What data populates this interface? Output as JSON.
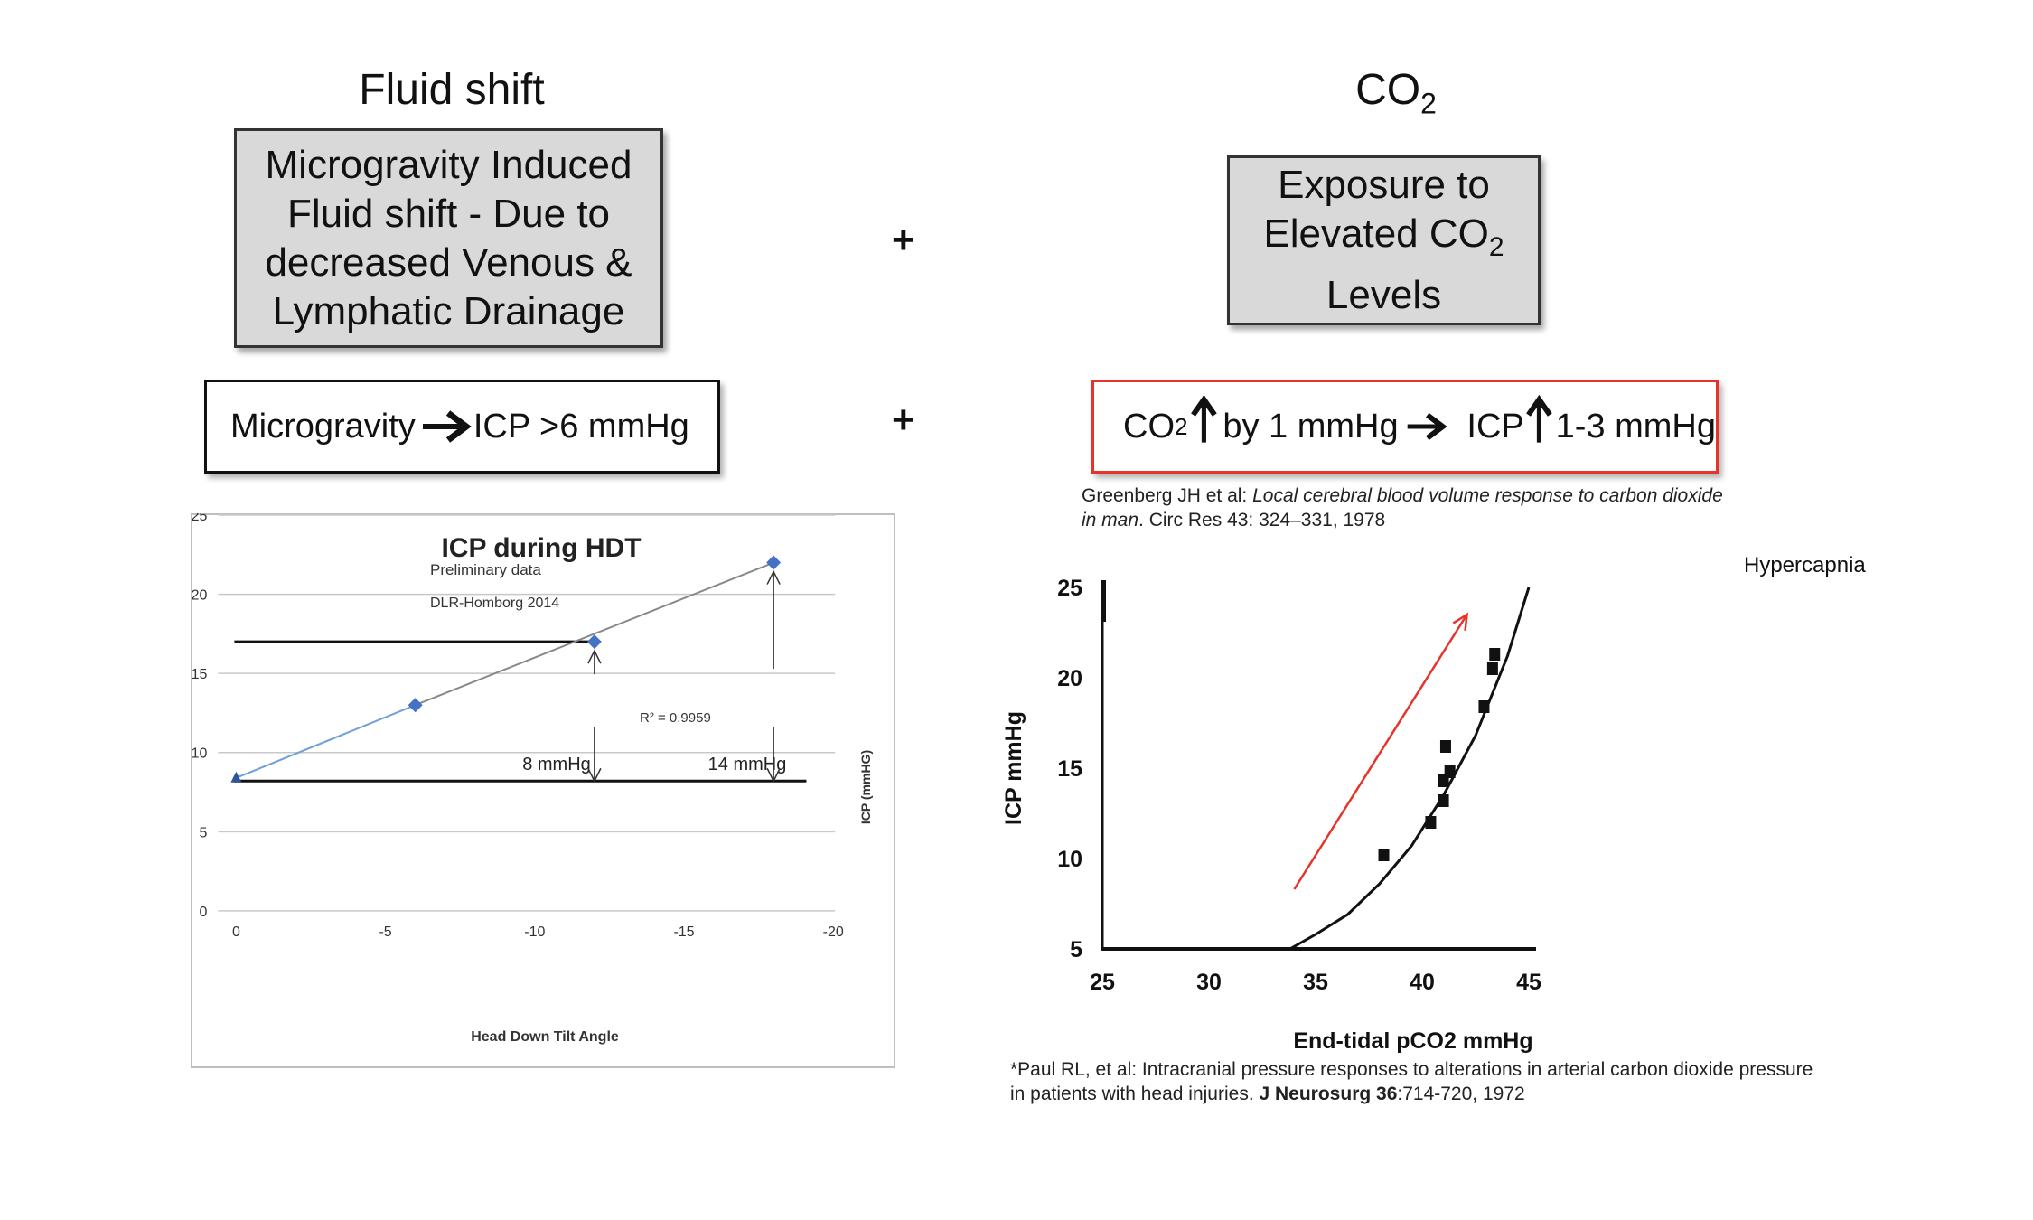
{
  "left": {
    "heading": "Fluid shift",
    "box_lines": [
      "Microgravity Induced",
      "Fluid shift - Due to",
      "decreased Venous &",
      "Lymphatic Drainage"
    ],
    "formula_left": "Microgravity",
    "formula_right": "ICP >6 mmHg"
  },
  "right": {
    "heading_main": "CO",
    "heading_sub": "2",
    "box_line1": "Exposure to",
    "box_line2_main": "Elevated CO",
    "box_line2_sub": "2",
    "box_line3": "Levels",
    "formula_co": "CO",
    "formula_sub": "2",
    "formula_mid": "by 1 mmHg",
    "formula_icp": "ICP",
    "formula_end": "1-3 mmHg",
    "ref1_authors": "Greenberg JH et al:",
    "ref1_title_a": "Local cerebral blood volume response to carbon dioxide",
    "ref1_title_b": "in man",
    "ref1_journal": ". Circ Res 43:  324–331, 1978",
    "ref2_line1": "*Paul RL, et al: Intracranial pressure responses to alterations in arterial carbon dioxide pressure",
    "ref2_line2_a": "in patients with head injuries. ",
    "ref2_journal": "J Neurosurg 36",
    "ref2_line2_b": ":714-720, 1972"
  },
  "plus_signs": [
    "+",
    "+"
  ],
  "chart_data": [
    {
      "type": "scatter",
      "title": "ICP during HDT",
      "subtitle": "Preliminary data",
      "source_note": "DLR-Homborg 2014",
      "xlabel": "Head Down Tilt Angle",
      "ylabel": "ICP (mmHG)",
      "xlim": [
        0,
        -20
      ],
      "ylim": [
        0,
        25
      ],
      "xticks": [
        0,
        -5,
        -10,
        -15,
        -20
      ],
      "xtick_labels": [
        "0",
        "-5",
        "-10",
        "-15",
        "-20"
      ],
      "yticks": [
        0,
        5,
        10,
        15,
        20,
        25
      ],
      "ytick_labels": [
        "0",
        "5",
        "10",
        "15",
        "20",
        "25"
      ],
      "grid": true,
      "points": [
        {
          "x": 0,
          "y": 8.4
        },
        {
          "x": -6,
          "y": 13
        },
        {
          "x": -12,
          "y": 17
        },
        {
          "x": -18,
          "y": 22
        }
      ],
      "trendline_r2_label": "R² = 0.9959",
      "reference_lines": [
        17,
        8.2
      ],
      "annotations": [
        {
          "text": "8 mmHg",
          "x": -12
        },
        {
          "text": "14 mmHg",
          "x": -18
        }
      ],
      "colors": {
        "points": "#4472c4",
        "trend": "#888888",
        "grid": "#c8c8c8"
      }
    },
    {
      "type": "line",
      "xlabel": "End-tidal pCO2 mmHg",
      "ylabel": "ICP mmHg",
      "xlim": [
        25,
        45
      ],
      "ylim": [
        5,
        25
      ],
      "xticks": [
        25,
        30,
        35,
        40,
        45
      ],
      "xtick_labels": [
        "25",
        "30",
        "35",
        "40",
        "45"
      ],
      "yticks": [
        5,
        10,
        15,
        20,
        25
      ],
      "ytick_labels": [
        "5",
        "10",
        "15",
        "20",
        "25"
      ],
      "series_label": "Hypercapnia",
      "curve": [
        {
          "x": 25,
          "y": 5
        },
        {
          "x": 33.8,
          "y": 5
        },
        {
          "x": 35,
          "y": 5.8
        },
        {
          "x": 36.5,
          "y": 6.9
        },
        {
          "x": 38,
          "y": 8.6
        },
        {
          "x": 39.5,
          "y": 10.7
        },
        {
          "x": 41,
          "y": 13.5
        },
        {
          "x": 42.5,
          "y": 16.8
        },
        {
          "x": 44,
          "y": 21.2
        },
        {
          "x": 45,
          "y": 25
        }
      ],
      "points": [
        {
          "x": 38.2,
          "y": 10.2
        },
        {
          "x": 40.4,
          "y": 12
        },
        {
          "x": 41,
          "y": 13.2
        },
        {
          "x": 41,
          "y": 14.3
        },
        {
          "x": 41.1,
          "y": 16.2
        },
        {
          "x": 41.3,
          "y": 14.8
        },
        {
          "x": 43.3,
          "y": 20.5
        },
        {
          "x": 43.4,
          "y": 21.3
        },
        {
          "x": 42.9,
          "y": 18.4
        }
      ],
      "arrow": {
        "from": {
          "x": 34,
          "y": 8.3
        },
        "to": {
          "x": 42.1,
          "y": 23.5
        },
        "color": "#e8332a"
      }
    }
  ]
}
